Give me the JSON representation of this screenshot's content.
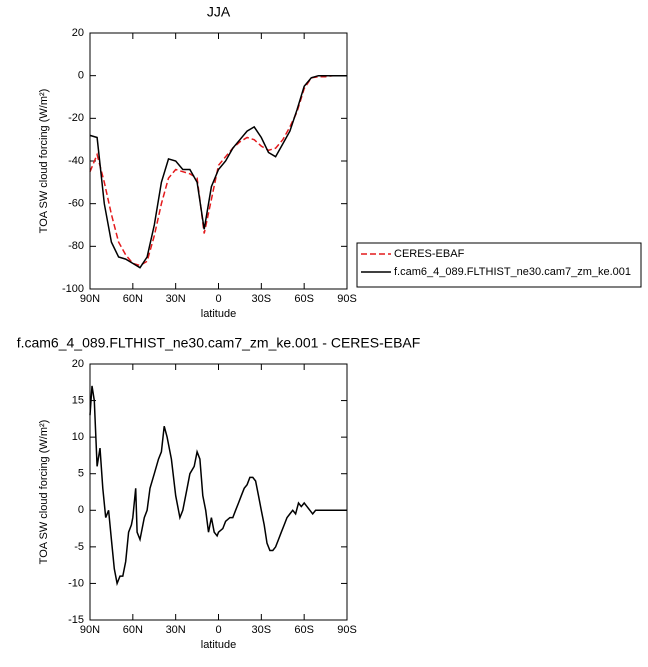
{
  "chart_data": [
    {
      "type": "line",
      "title": "JJA",
      "ylabel": "TOA SW cloud forcing (W/m²)",
      "xlabel": "latitude",
      "x": [
        90,
        85,
        80,
        75,
        70,
        65,
        60,
        55,
        50,
        45,
        40,
        35,
        30,
        25,
        20,
        15,
        10,
        5,
        0,
        -5,
        -10,
        -15,
        -20,
        -25,
        -30,
        -35,
        -40,
        -45,
        -50,
        -55,
        -60,
        -65,
        -70,
        -75,
        -80,
        -85,
        -90
      ],
      "series": [
        {
          "name": "CERES-EBAF",
          "color": "#e41a1c",
          "dash": true,
          "values": [
            -45,
            -37,
            -50,
            -65,
            -78,
            -84,
            -88,
            -89,
            -87,
            -75,
            -60,
            -48,
            -44,
            -45,
            -46,
            -48,
            -74,
            -58,
            -42,
            -38,
            -34,
            -31,
            -29,
            -30,
            -33,
            -35,
            -34,
            -30,
            -24,
            -17,
            -6,
            -1,
            -0.5,
            -0.5,
            0,
            0,
            0
          ]
        },
        {
          "name": "f.cam6_4_089.FLTHIST_ne30.cam7_zm_ke.001",
          "color": "#000000",
          "dash": false,
          "values": [
            -28,
            -29,
            -60,
            -78,
            -85,
            -86,
            -88,
            -90,
            -85,
            -70,
            -50,
            -39,
            -40,
            -44,
            -44,
            -50,
            -72,
            -52,
            -44,
            -40,
            -34,
            -30,
            -26,
            -24,
            -29,
            -36,
            -38,
            -32,
            -26,
            -16,
            -5,
            -1,
            0,
            0,
            0,
            0,
            0
          ]
        }
      ],
      "xlim": [
        90,
        -90
      ],
      "xticks": [
        {
          "value": 90,
          "label": "90N"
        },
        {
          "value": 60,
          "label": "60N"
        },
        {
          "value": 30,
          "label": "30N"
        },
        0,
        {
          "value": -30,
          "label": "30S"
        },
        {
          "value": -60,
          "label": "60S"
        },
        {
          "value": -90,
          "label": "90S"
        }
      ],
      "ylim": [
        -100,
        20
      ],
      "yticks": [
        -100,
        -80,
        -60,
        -40,
        -20,
        0,
        20
      ]
    },
    {
      "type": "line",
      "title": "f.cam6_4_089.FLTHIST_ne30.cam7_zm_ke.001 - CERES-EBAF",
      "ylabel": "TOA SW cloud forcing (W/m²)",
      "xlabel": "latitude",
      "x": [
        90,
        88.6,
        87,
        85,
        83,
        81,
        79,
        77,
        75,
        73,
        71,
        69,
        67,
        65,
        63,
        61,
        60,
        58,
        57,
        55,
        52,
        50,
        48,
        45,
        42,
        40,
        38,
        36,
        33,
        30,
        27,
        25,
        22,
        20,
        17,
        15,
        13,
        11,
        9,
        7,
        5,
        3,
        1,
        0,
        -3,
        -5,
        -8,
        -10,
        -12,
        -14,
        -16,
        -18,
        -20,
        -22,
        -24,
        -26,
        -28,
        -30,
        -32,
        -34,
        -36,
        -38,
        -40,
        -42,
        -44,
        -46,
        -48,
        -50,
        -52,
        -54,
        -56,
        -58,
        -60,
        -62,
        -64,
        -66,
        -68,
        -70,
        -75,
        -80,
        -90
      ],
      "series": [
        {
          "color": "#000000",
          "dash": false,
          "values": [
            13,
            17,
            15,
            6,
            8.5,
            3,
            -1,
            0,
            -4,
            -8,
            -10,
            -9,
            -9,
            -7,
            -3,
            -2,
            -1,
            3,
            -3,
            -4,
            -1,
            0,
            3,
            5,
            7,
            8,
            11.5,
            10,
            7,
            2,
            -1,
            0,
            3,
            5,
            6,
            8,
            7,
            2,
            0,
            -3,
            -1,
            -3,
            -3.5,
            -3,
            -2.5,
            -1.5,
            -1,
            -1,
            0,
            1,
            2,
            3,
            3.5,
            4.5,
            4.5,
            4,
            2,
            0,
            -2,
            -4.5,
            -5.5,
            -5.5,
            -5,
            -4,
            -3,
            -2,
            -1,
            -0.5,
            0,
            -0.5,
            1,
            0.5,
            1,
            0.5,
            0,
            -0.5,
            0,
            0,
            0,
            0,
            0
          ]
        }
      ],
      "xlim": [
        90,
        -90
      ],
      "xticks": [
        {
          "value": 90,
          "label": "90N"
        },
        {
          "value": 60,
          "label": "60N"
        },
        {
          "value": 30,
          "label": "30N"
        },
        0,
        {
          "value": -30,
          "label": "30S"
        },
        {
          "value": -60,
          "label": "60S"
        },
        {
          "value": -90,
          "label": "90S"
        }
      ],
      "ylim": [
        -15,
        20
      ],
      "yticks": [
        -15,
        -10,
        -5,
        0,
        5,
        10,
        15,
        20
      ]
    }
  ]
}
